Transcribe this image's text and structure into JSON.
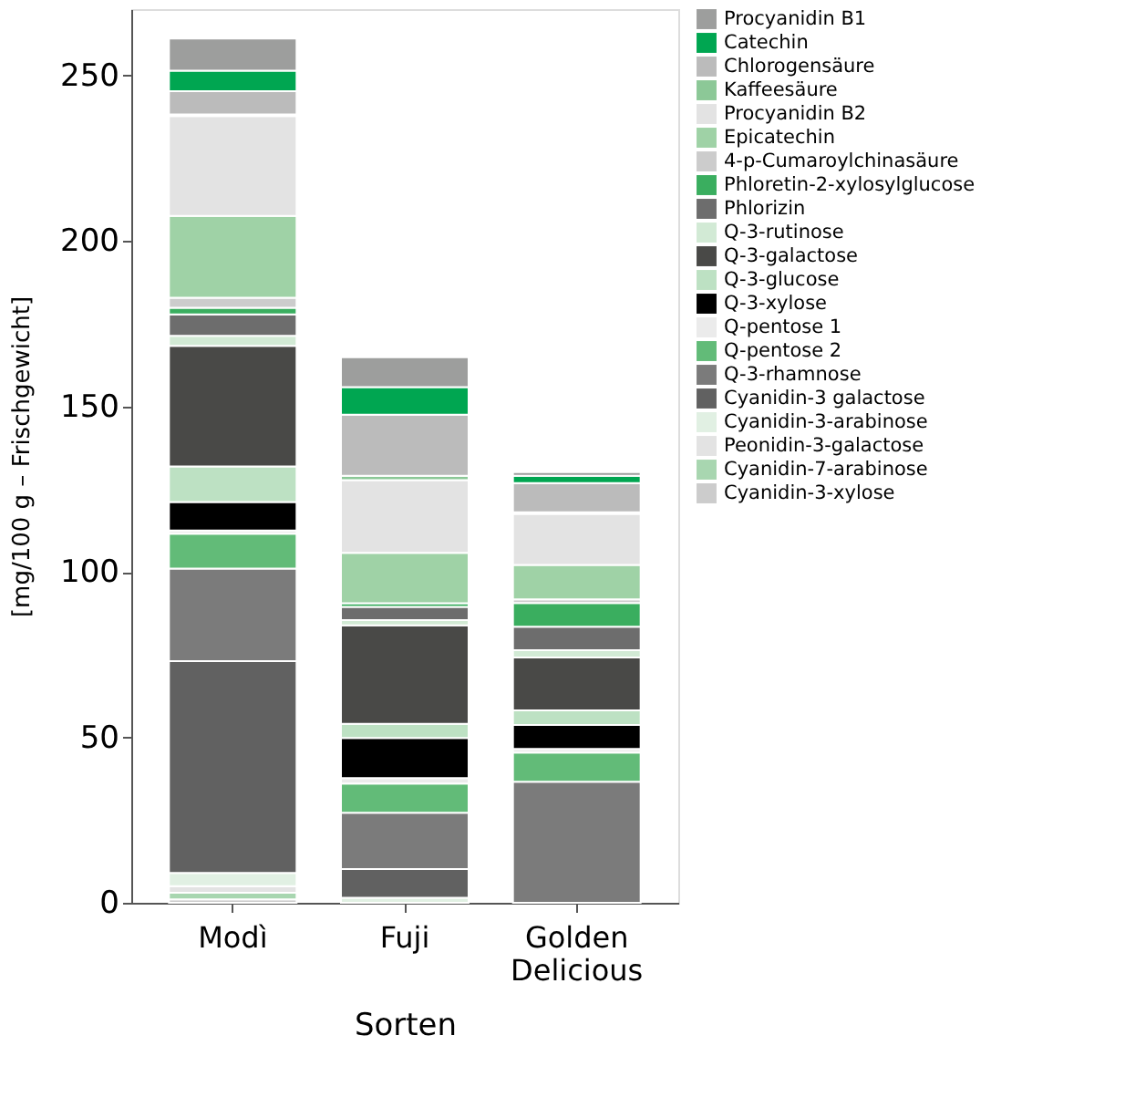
{
  "chart_data": {
    "type": "bar",
    "stacked": true,
    "xlabel": "Sorten",
    "ylabel": "[mg/100 g – Frischgewicht]",
    "categories": [
      "Modì",
      "Fuji",
      "Golden Delicious"
    ],
    "ylim": [
      0,
      270
    ],
    "yticks": [
      0,
      50,
      100,
      150,
      200,
      250
    ],
    "grid": false,
    "legend": "top right",
    "series": [
      {
        "name": "Cyanidin-3-xylose",
        "color": "#cccccc",
        "values": [
          1,
          null,
          null
        ]
      },
      {
        "name": "Cyanidin-7-arabinose",
        "color": "#a8d6b0",
        "values": [
          2,
          null,
          null
        ]
      },
      {
        "name": "Peonidin-3-galactose",
        "color": "#e3e3e3",
        "values": [
          2,
          null,
          null
        ]
      },
      {
        "name": "Cyanidin-3-arabinose",
        "color": "#e1f0e3",
        "values": [
          4,
          1.5,
          null
        ]
      },
      {
        "name": "Cyanidin-3 galactose",
        "color": "#616161",
        "values": [
          64,
          8.7,
          null
        ]
      },
      {
        "name": "Q-3-rhamnose",
        "color": "#7b7b7b",
        "values": [
          28,
          17,
          36.6
        ]
      },
      {
        "name": "Q-pentose 2",
        "color": "#62bb78",
        "values": [
          10.5,
          8.8,
          8.8
        ]
      },
      {
        "name": "Q-pentose 1",
        "color": "#ebebeb",
        "values": [
          1,
          1.7,
          1.1
        ]
      },
      {
        "name": "Q-3-xylose",
        "color": "#000000",
        "values": [
          8.6,
          12.1,
          7.2
        ]
      },
      {
        "name": "Q-3-glucose",
        "color": "#bde1c3",
        "values": [
          10.7,
          4.3,
          4.4
        ]
      },
      {
        "name": "Q-3-galactose",
        "color": "#494947",
        "values": [
          36.5,
          29.7,
          16
        ]
      },
      {
        "name": "Q-3-rutinose",
        "color": "#d2ead5",
        "values": [
          3,
          1.6,
          2.2
        ]
      },
      {
        "name": "Phlorizin",
        "color": "#6d6d6d",
        "values": [
          6.5,
          4,
          7.1
        ]
      },
      {
        "name": "Phloretin-2-xylosylglucose",
        "color": "#3aae5f",
        "values": [
          2,
          1.1,
          7.2
        ]
      },
      {
        "name": "4-p-Cumaroylchinasäure",
        "color": "#cccccc",
        "values": [
          3,
          null,
          1.1
        ]
      },
      {
        "name": "Epicatechin",
        "color": "#9fd2a6",
        "values": [
          24.7,
          15.2,
          10.4
        ]
      },
      {
        "name": "Procyanidin B2",
        "color": "#e3e3e3",
        "values": [
          30.2,
          22,
          15.4
        ]
      },
      {
        "name": "Kaffeesäure",
        "color": "#8cc897",
        "values": [
          0.5,
          1.3,
          0.5
        ]
      },
      {
        "name": "Chlorogensäure",
        "color": "#bbbbbb",
        "values": [
          7,
          18.5,
          8.8
        ]
      },
      {
        "name": "Catechin",
        "color": "#00a651",
        "values": [
          6.2,
          8.3,
          2.2
        ]
      },
      {
        "name": "Procyanidin B1",
        "color": "#9d9e9d",
        "values": [
          9.7,
          9,
          1.1
        ]
      }
    ]
  }
}
